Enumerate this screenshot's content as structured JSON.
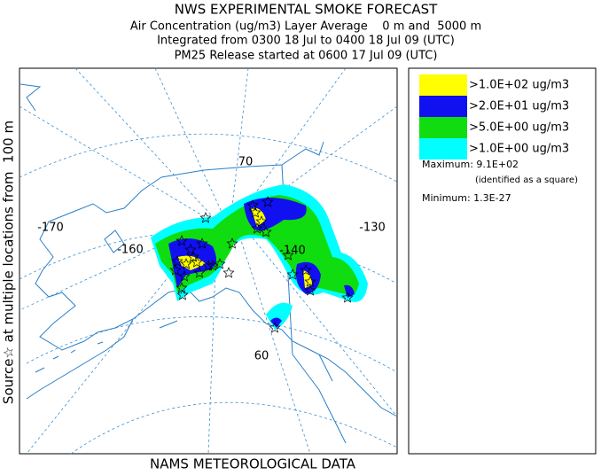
{
  "header": {
    "title": "NWS EXPERIMENTAL SMOKE FORECAST",
    "lines": [
      "Air Concentration (ug/m3) Layer Average    0 m and  5000 m",
      "Integrated from 0300 18 Jul to 0400 18 Jul 09 (UTC)",
      "PM25 Release started at 0600 17 Jul 09 (UTC)"
    ]
  },
  "side_label": "Source☆ at multiple locations from  100 m",
  "footer": "NAMS METEOROLOGICAL DATA",
  "map": {
    "graticule_labels": [
      "-170",
      "-160",
      "-140",
      "-130",
      "70",
      "60"
    ]
  },
  "legend": {
    "entries": [
      {
        "label": ">1.0E+02 ug/m3",
        "color": "#ffff00"
      },
      {
        "label": ">2.0E+01 ug/m3",
        "color": "#1010f0"
      },
      {
        "label": ">5.0E+00 ug/m3",
        "color": "#10dd10"
      },
      {
        "label": ">1.0E+00 ug/m3",
        "color": "#00ffff"
      }
    ],
    "maximum": "Maximum: 9.1E+02",
    "max_note": "(identified as a square)",
    "minimum": "Minimum: 1.3E-27"
  }
}
